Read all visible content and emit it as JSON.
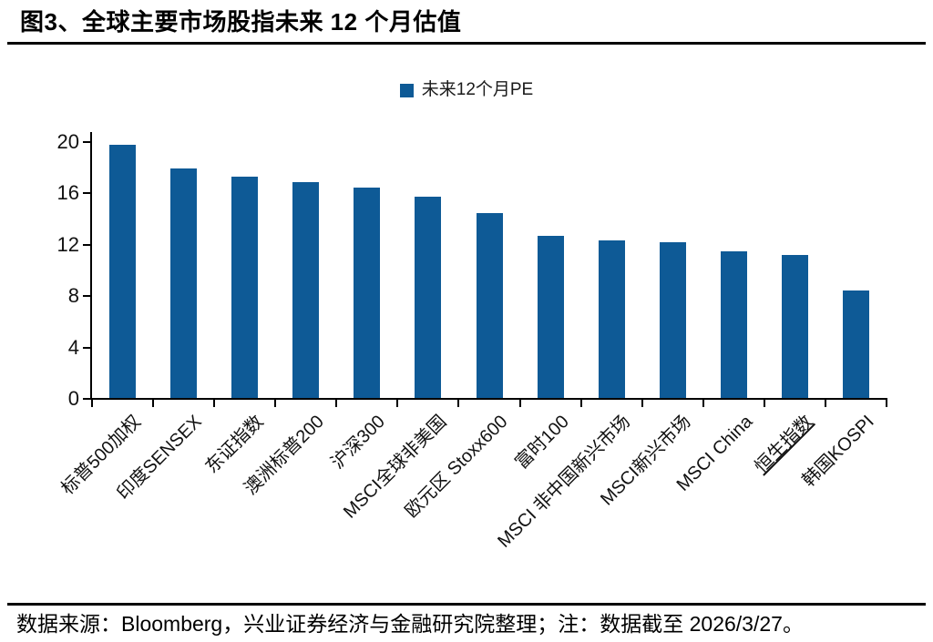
{
  "figure": {
    "title": "图3、全球主要市场股指未来 12 个月估值",
    "source_note": "数据来源：Bloomberg，兴业证券经济与金融研究院整理；注：数据截至 2026/3/27。"
  },
  "chart_data": {
    "type": "bar",
    "title": "全球主要市场股指未来 12 个月估值",
    "legend": [
      "未来12个月PE"
    ],
    "legend_position": "top-center",
    "categories": [
      "标普500加权",
      "印度SENSEX",
      "东证指数",
      "澳洲标普200",
      "沪深300",
      "MSCI全球非美国",
      "欧元区 Stoxx600",
      "富时100",
      "MSCI 非中国新兴市场",
      "MSCI新兴市场",
      "MSCI China",
      "恒生指数",
      "韩国KOSPI"
    ],
    "values": [
      19.7,
      17.9,
      17.2,
      16.8,
      16.4,
      15.7,
      14.4,
      12.6,
      12.3,
      12.1,
      11.4,
      11.1,
      8.4
    ],
    "ylabel": "",
    "xlabel": "",
    "ylim": [
      0,
      20
    ],
    "yticks": [
      0,
      4,
      8,
      12,
      16,
      20
    ],
    "grid": false,
    "bar_color": "#0E5A96",
    "axis_color": "#000000",
    "category_label_rotation_deg": 45,
    "underlined_categories": [
      "恒生指数"
    ]
  }
}
